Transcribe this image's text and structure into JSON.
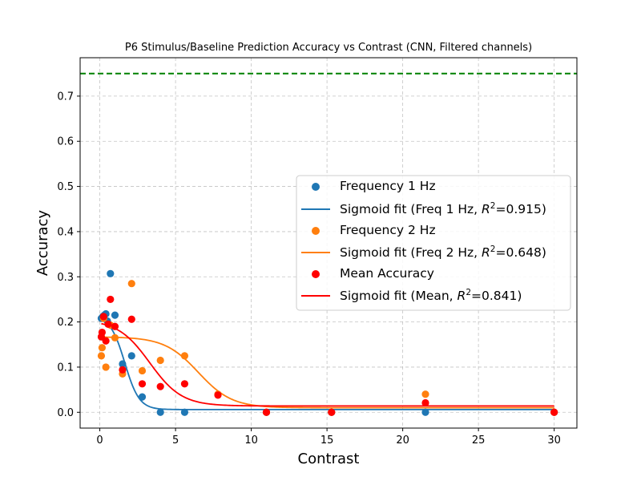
{
  "chart_data": {
    "type": "scatter",
    "title": "P6 Stimulus/Baseline Prediction Accuracy vs Contrast (CNN, Filtered channels)",
    "xlabel": "Contrast",
    "ylabel": "Accuracy",
    "xlim": [
      -1.3,
      31.5
    ],
    "ylim": [
      -0.035,
      0.785
    ],
    "x_ticks": [
      0,
      5,
      10,
      15,
      20,
      25,
      30
    ],
    "y_ticks": [
      0.0,
      0.1,
      0.2,
      0.3,
      0.4,
      0.5,
      0.6,
      0.7
    ],
    "x_tick_labels": [
      "0",
      "5",
      "10",
      "15",
      "20",
      "25",
      "30"
    ],
    "y_tick_labels": [
      "0.0",
      "0.1",
      "0.2",
      "0.3",
      "0.4",
      "0.5",
      "0.6",
      "0.7"
    ],
    "grid": true,
    "legend_position": "center-right",
    "reference_line": {
      "y": 0.75,
      "color": "#008000",
      "style": "dashed"
    },
    "series": [
      {
        "name": "Frequency 1 Hz",
        "kind": "scatter",
        "color": "#1f77b4",
        "x": [
          0.1,
          0.2,
          0.3,
          0.4,
          0.5,
          0.7,
          1.0,
          1.5,
          2.1,
          2.8,
          4.0,
          5.6,
          11.0,
          15.3,
          21.5,
          30.0
        ],
        "y": [
          0.208,
          0.212,
          0.215,
          0.218,
          0.202,
          0.307,
          0.215,
          0.107,
          0.125,
          0.034,
          0.0,
          0.0,
          0.0,
          0.0,
          0.0,
          0.0
        ]
      },
      {
        "name": "Sigmoid fit (Freq 1 Hz, R²=0.915)",
        "legend_label": "Sigmoid fit (Freq 1 Hz, ",
        "r2": "0.915",
        "kind": "sigmoid",
        "color": "#1f77b4",
        "params": {
          "bottom": 0.006,
          "top": 0.213,
          "x0": 1.65,
          "k": 2.1
        }
      },
      {
        "name": "Frequency 2 Hz",
        "kind": "scatter",
        "color": "#ff7f0e",
        "x": [
          0.1,
          0.15,
          0.25,
          0.4,
          0.7,
          1.0,
          1.5,
          2.1,
          2.8,
          4.0,
          5.6,
          7.8,
          11.0,
          15.3,
          21.5,
          30.0
        ],
        "y": [
          0.125,
          0.143,
          0.208,
          0.1,
          0.193,
          0.165,
          0.085,
          0.285,
          0.092,
          0.115,
          0.125,
          0.04,
          0.0,
          0.0,
          0.04,
          0.0
        ]
      },
      {
        "name": "Sigmoid fit (Freq 2 Hz, R²=0.648)",
        "legend_label": "Sigmoid fit (Freq 2 Hz, ",
        "r2": "0.648",
        "kind": "sigmoid",
        "color": "#ff7f0e",
        "params": {
          "bottom": 0.01,
          "top": 0.167,
          "x0": 6.5,
          "k": 0.9
        }
      },
      {
        "name": "Mean Accuracy",
        "kind": "scatter",
        "color": "#ff0000",
        "x": [
          0.1,
          0.15,
          0.25,
          0.4,
          0.55,
          0.7,
          1.0,
          1.5,
          2.1,
          2.8,
          4.0,
          5.6,
          7.8,
          11.0,
          15.3,
          21.5,
          30.0
        ],
        "y": [
          0.167,
          0.177,
          0.212,
          0.158,
          0.195,
          0.25,
          0.19,
          0.094,
          0.206,
          0.063,
          0.057,
          0.063,
          0.038,
          0.0,
          0.0,
          0.021,
          0.0
        ]
      },
      {
        "name": "Sigmoid fit (Mean, R²=0.841)",
        "legend_label": "Sigmoid fit (Mean, ",
        "r2": "0.841",
        "kind": "sigmoid",
        "color": "#ff0000",
        "params": {
          "bottom": 0.014,
          "top": 0.205,
          "x0": 3.3,
          "k": 0.95
        }
      }
    ]
  }
}
